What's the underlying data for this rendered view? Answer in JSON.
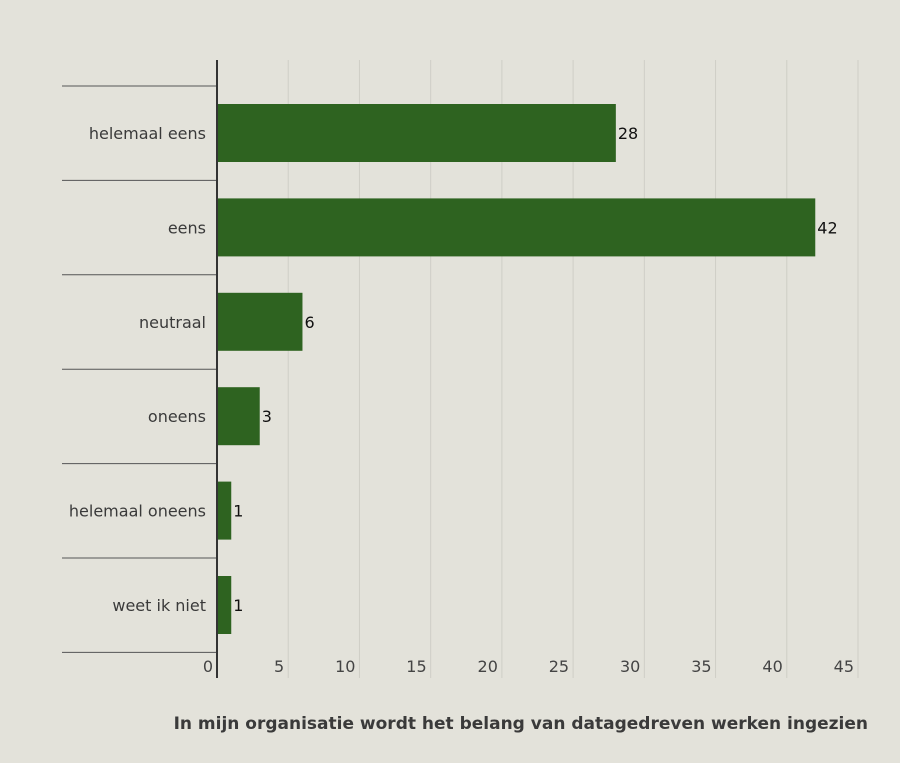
{
  "chart_data": {
    "type": "bar",
    "orientation": "horizontal",
    "title": "In mijn organisatie wordt het belang van datagedreven werken ingezien",
    "categories": [
      "helemaal eens",
      "eens",
      "neutraal",
      "oneens",
      "helemaal oneens",
      "weet ik niet"
    ],
    "values": [
      28,
      42,
      6,
      3,
      1,
      1
    ],
    "xlim": [
      0,
      45
    ],
    "xticks": [
      0,
      5,
      10,
      15,
      20,
      25,
      30,
      35,
      40,
      45
    ],
    "grid": true,
    "bar_color": "#2e6320",
    "background": "#e3e2da"
  }
}
